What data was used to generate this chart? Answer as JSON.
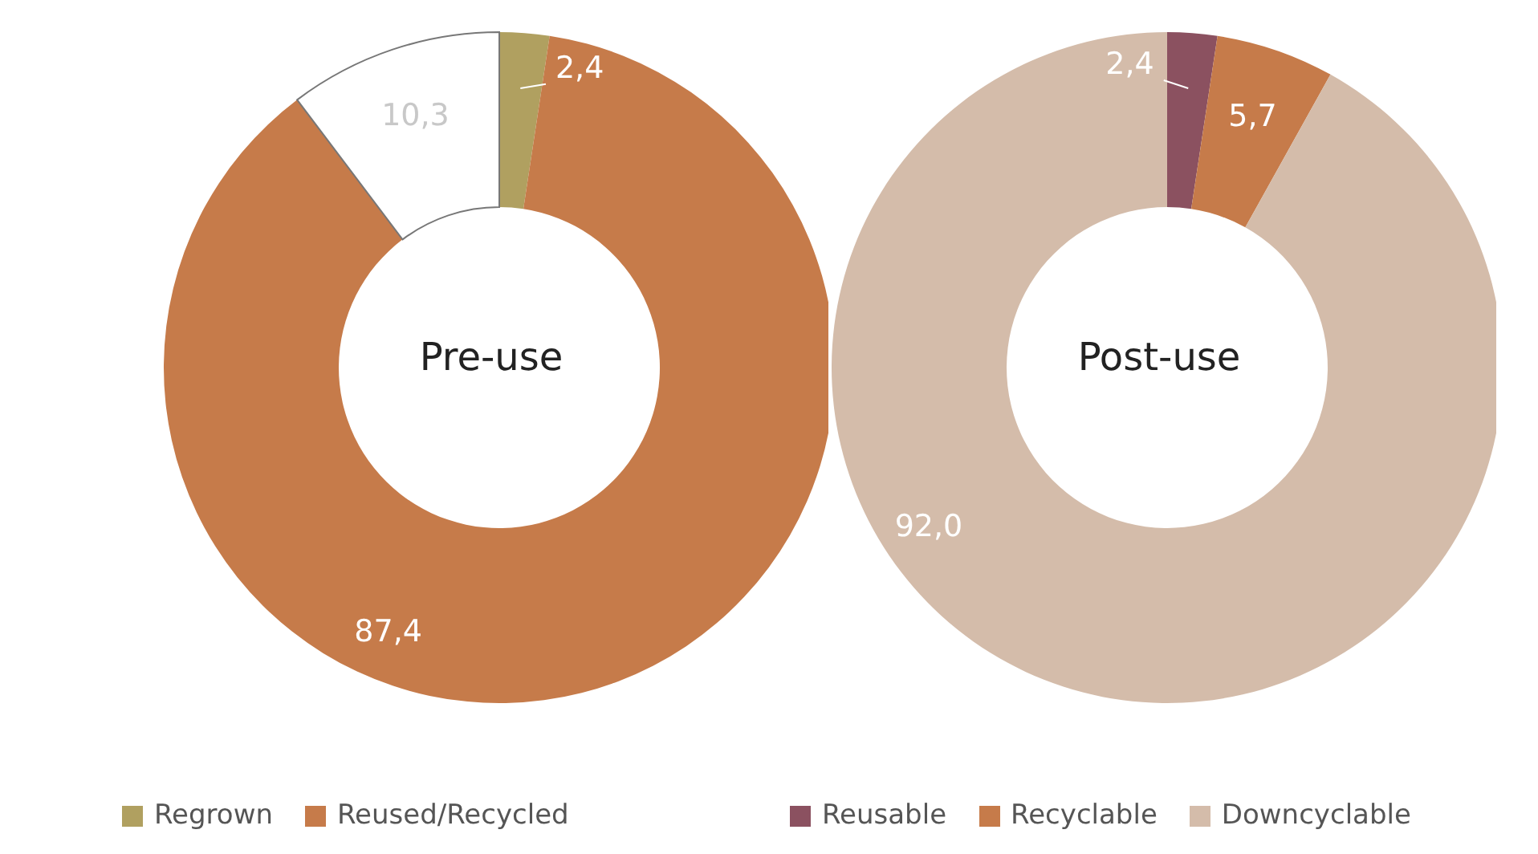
{
  "chart_data": [
    {
      "type": "donut",
      "title": "Pre-use",
      "categories": [
        "Regrown",
        "Reused/Recycled",
        null
      ],
      "values": [
        2.4,
        87.4,
        10.3
      ],
      "colors": [
        "#b0a060",
        "#c67b4a",
        "#ffffff"
      ],
      "value_labels": [
        "2,4",
        "87,4",
        "10,3"
      ],
      "legend": "bottom"
    },
    {
      "type": "donut",
      "title": "Post-use",
      "categories": [
        "Reusable",
        "Recyclable",
        "Downcyclable"
      ],
      "values": [
        2.4,
        5.7,
        92.0
      ],
      "colors": [
        "#8b5160",
        "#c67b4a",
        "#d4bcaa"
      ],
      "value_labels": [
        "2,4",
        "5,7",
        "92,0"
      ],
      "legend": "bottom"
    }
  ]
}
